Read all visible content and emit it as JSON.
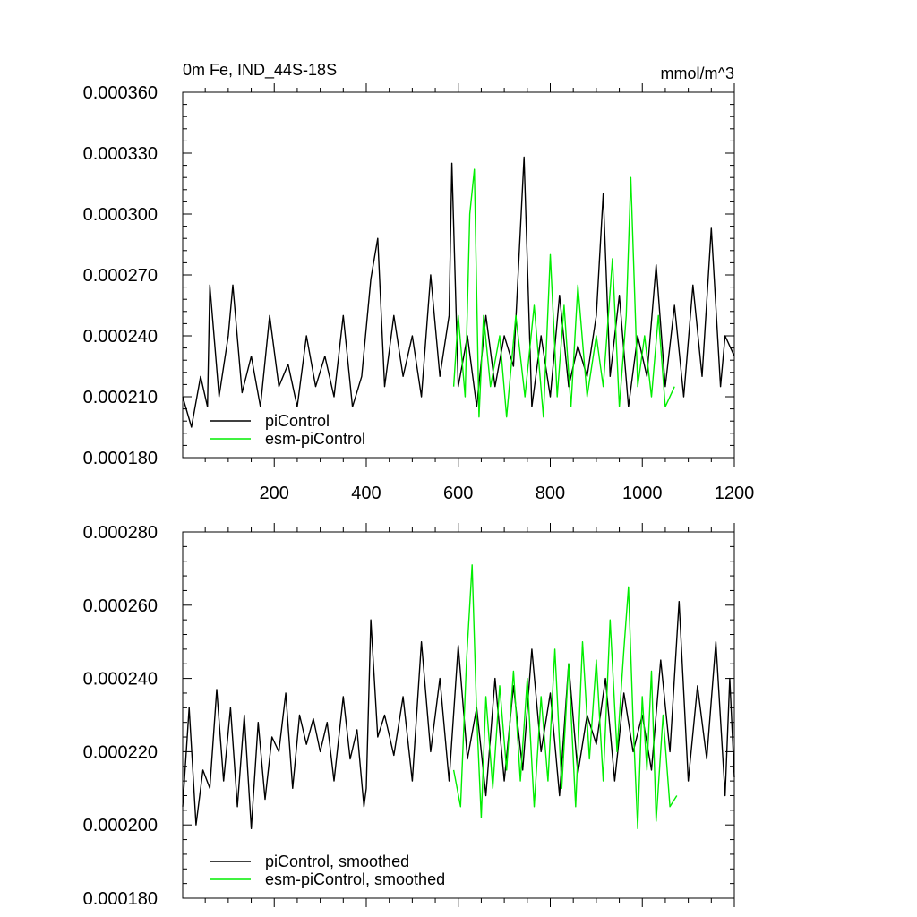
{
  "chart_data": [
    {
      "type": "line",
      "title": "0m Fe, IND_44S-18S",
      "units": "mmol/m^3",
      "xlabel": "",
      "ylabel": "",
      "xlim": [
        1,
        1200
      ],
      "ylim": [
        0.00018,
        0.00036
      ],
      "xticks": [
        200,
        400,
        600,
        800,
        1000,
        1200
      ],
      "xtick_labels": [
        "200",
        "400",
        "600",
        "800",
        "1000",
        "1200"
      ],
      "yticks": [
        0.00018,
        0.00021,
        0.00024,
        0.00027,
        0.0003,
        0.00033,
        0.00036
      ],
      "ytick_labels": [
        "0.000180",
        "0.000210",
        "0.000240",
        "0.000270",
        "0.000300",
        "0.000330",
        "0.000360"
      ],
      "legend_position": "bottom-left",
      "series": [
        {
          "name": "piControl",
          "color": "#000000",
          "x": [
            1,
            20,
            40,
            55,
            60,
            80,
            100,
            110,
            130,
            150,
            170,
            190,
            210,
            230,
            250,
            270,
            290,
            310,
            330,
            350,
            370,
            390,
            410,
            425,
            440,
            460,
            480,
            500,
            520,
            540,
            560,
            580,
            586,
            600,
            620,
            640,
            660,
            680,
            700,
            720,
            743,
            760,
            780,
            800,
            820,
            840,
            860,
            880,
            900,
            915,
            930,
            950,
            970,
            990,
            1010,
            1030,
            1050,
            1070,
            1090,
            1110,
            1130,
            1150,
            1170,
            1180,
            1200
          ],
          "y": [
            0.00021,
            0.000195,
            0.00022,
            0.000205,
            0.000265,
            0.00021,
            0.00024,
            0.000265,
            0.000212,
            0.00023,
            0.000205,
            0.00025,
            0.000215,
            0.000226,
            0.000205,
            0.00024,
            0.000215,
            0.00023,
            0.00021,
            0.00025,
            0.000205,
            0.00022,
            0.000268,
            0.000288,
            0.000215,
            0.00025,
            0.00022,
            0.00024,
            0.00021,
            0.00027,
            0.00022,
            0.00025,
            0.000325,
            0.000215,
            0.00024,
            0.000205,
            0.00025,
            0.000215,
            0.00024,
            0.000225,
            0.000328,
            0.000205,
            0.00024,
            0.00021,
            0.00026,
            0.000215,
            0.000235,
            0.00022,
            0.00025,
            0.00031,
            0.00022,
            0.00026,
            0.000205,
            0.00024,
            0.00022,
            0.000275,
            0.000215,
            0.000255,
            0.00021,
            0.000265,
            0.00022,
            0.000293,
            0.000215,
            0.00024,
            0.00023
          ]
        },
        {
          "name": "esm-piControl",
          "color": "#00ee00",
          "x": [
            590,
            600,
            615,
            625,
            635,
            645,
            655,
            670,
            690,
            705,
            725,
            745,
            765,
            785,
            800,
            815,
            830,
            845,
            860,
            880,
            900,
            915,
            935,
            950,
            965,
            975,
            990,
            1005,
            1020,
            1035,
            1050,
            1070
          ],
          "y": [
            0.000215,
            0.00025,
            0.00021,
            0.0003,
            0.000322,
            0.0002,
            0.00025,
            0.000215,
            0.00024,
            0.0002,
            0.00025,
            0.00021,
            0.000255,
            0.0002,
            0.00028,
            0.00021,
            0.000255,
            0.000205,
            0.000265,
            0.00021,
            0.00024,
            0.000215,
            0.000278,
            0.000205,
            0.00025,
            0.000318,
            0.000215,
            0.00024,
            0.00021,
            0.00025,
            0.000205,
            0.000215
          ]
        }
      ]
    },
    {
      "type": "line",
      "title": "",
      "xlabel": "",
      "ylabel": "",
      "xlim": [
        1,
        1200
      ],
      "ylim": [
        0.00018,
        0.00028
      ],
      "xticks": [
        200,
        400,
        600,
        800,
        1000,
        1200
      ],
      "yticks": [
        0.00018,
        0.0002,
        0.00022,
        0.00024,
        0.00026,
        0.00028
      ],
      "ytick_labels": [
        "0.000180",
        "0.000200",
        "0.000220",
        "0.000240",
        "0.000260",
        "0.000280"
      ],
      "legend_position": "bottom-left",
      "series": [
        {
          "name": "piControl, smoothed",
          "color": "#000000",
          "x": [
            1,
            15,
            30,
            45,
            60,
            75,
            90,
            105,
            120,
            135,
            150,
            165,
            180,
            195,
            210,
            225,
            240,
            255,
            270,
            285,
            300,
            315,
            330,
            350,
            365,
            380,
            395,
            400,
            410,
            425,
            440,
            460,
            480,
            500,
            520,
            540,
            560,
            580,
            600,
            620,
            640,
            660,
            680,
            700,
            720,
            740,
            760,
            780,
            800,
            820,
            840,
            860,
            880,
            900,
            920,
            940,
            960,
            980,
            1000,
            1020,
            1040,
            1060,
            1080,
            1100,
            1120,
            1140,
            1160,
            1180,
            1190,
            1200
          ],
          "y": [
            0.000205,
            0.000232,
            0.0002,
            0.000215,
            0.00021,
            0.000237,
            0.000212,
            0.000232,
            0.000205,
            0.00023,
            0.000199,
            0.000228,
            0.000207,
            0.000224,
            0.00022,
            0.000236,
            0.00021,
            0.00023,
            0.000222,
            0.000229,
            0.00022,
            0.000228,
            0.000212,
            0.000235,
            0.000218,
            0.000226,
            0.000205,
            0.00021,
            0.000256,
            0.000224,
            0.00023,
            0.000219,
            0.000235,
            0.000212,
            0.00025,
            0.00022,
            0.00024,
            0.000212,
            0.000249,
            0.000218,
            0.000232,
            0.000208,
            0.00024,
            0.000212,
            0.000238,
            0.000215,
            0.000248,
            0.00022,
            0.000236,
            0.000208,
            0.000244,
            0.000214,
            0.00023,
            0.000222,
            0.00024,
            0.000212,
            0.000236,
            0.00022,
            0.00023,
            0.000215,
            0.000245,
            0.00022,
            0.000261,
            0.000212,
            0.000238,
            0.000218,
            0.00025,
            0.000208,
            0.00024,
            0.000213
          ]
        },
        {
          "name": "esm-piControl, smoothed",
          "color": "#00ee00",
          "x": [
            590,
            605,
            618,
            630,
            640,
            650,
            660,
            675,
            690,
            705,
            720,
            735,
            750,
            765,
            780,
            795,
            810,
            825,
            840,
            855,
            870,
            885,
            900,
            915,
            930,
            945,
            960,
            970,
            980,
            990,
            1000,
            1010,
            1020,
            1030,
            1045,
            1060,
            1075
          ],
          "y": [
            0.000215,
            0.000205,
            0.000245,
            0.000271,
            0.00023,
            0.000202,
            0.000235,
            0.00021,
            0.000238,
            0.000215,
            0.000242,
            0.000212,
            0.00024,
            0.000205,
            0.000235,
            0.000212,
            0.000248,
            0.00021,
            0.000244,
            0.000205,
            0.00025,
            0.000218,
            0.000245,
            0.000212,
            0.000256,
            0.00022,
            0.000248,
            0.000265,
            0.000228,
            0.000199,
            0.000235,
            0.000215,
            0.000242,
            0.000201,
            0.00023,
            0.000205,
            0.000208
          ]
        }
      ]
    }
  ]
}
